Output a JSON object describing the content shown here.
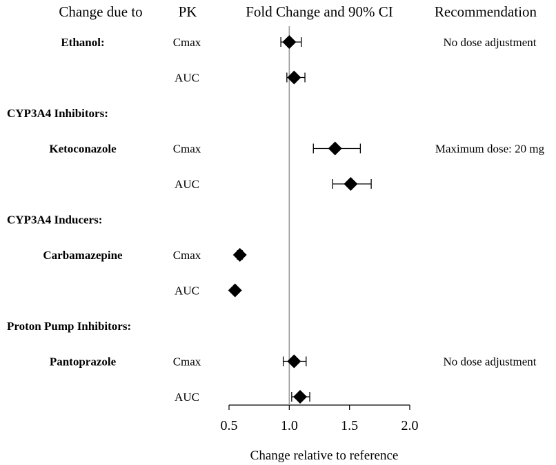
{
  "headers": {
    "change": "Change due to",
    "pk": "PK",
    "fold": "Fold Change and 90% CI",
    "recommendation": "Recommendation"
  },
  "chart_data": {
    "type": "forest",
    "xlabel": "Change relative to reference",
    "xlim": [
      0.5,
      2.0
    ],
    "xticks": [
      "0.5",
      "1.0",
      "1.5",
      "2.0"
    ],
    "reference_line": 1.0,
    "grid": false,
    "rows": [
      {
        "group": "Ethanol:",
        "pk": "Cmax",
        "estimate": 1.0,
        "ci": [
          0.93,
          1.1
        ],
        "recommendation": "No dose adjustment"
      },
      {
        "group": "",
        "pk": "AUC",
        "estimate": 1.04,
        "ci": [
          0.98,
          1.13
        ],
        "recommendation": ""
      },
      {
        "group": "CYP3A4 Inhibitors:",
        "pk": "",
        "estimate": null,
        "ci": null,
        "recommendation": ""
      },
      {
        "group": "Ketoconazole",
        "pk": "Cmax",
        "estimate": 1.38,
        "ci": [
          1.2,
          1.59
        ],
        "recommendation": "Maximum dose: 20 mg"
      },
      {
        "group": "",
        "pk": "AUC",
        "estimate": 1.51,
        "ci": [
          1.36,
          1.68
        ],
        "recommendation": ""
      },
      {
        "group": "CYP3A4 Inducers:",
        "pk": "",
        "estimate": null,
        "ci": null,
        "recommendation": ""
      },
      {
        "group": "Carbamazepine",
        "pk": "Cmax",
        "estimate": 0.59,
        "ci": [
          0.57,
          0.61
        ],
        "recommendation": ""
      },
      {
        "group": "",
        "pk": "AUC",
        "estimate": 0.55,
        "ci": [
          0.54,
          0.56
        ],
        "recommendation": ""
      },
      {
        "group": "Proton Pump Inhibitors:",
        "pk": "",
        "estimate": null,
        "ci": null,
        "recommendation": ""
      },
      {
        "group": "Pantoprazole",
        "pk": "Cmax",
        "estimate": 1.04,
        "ci": [
          0.95,
          1.14
        ],
        "recommendation": "No dose adjustment"
      },
      {
        "group": "",
        "pk": "AUC",
        "estimate": 1.09,
        "ci": [
          1.02,
          1.17
        ],
        "recommendation": ""
      }
    ]
  }
}
